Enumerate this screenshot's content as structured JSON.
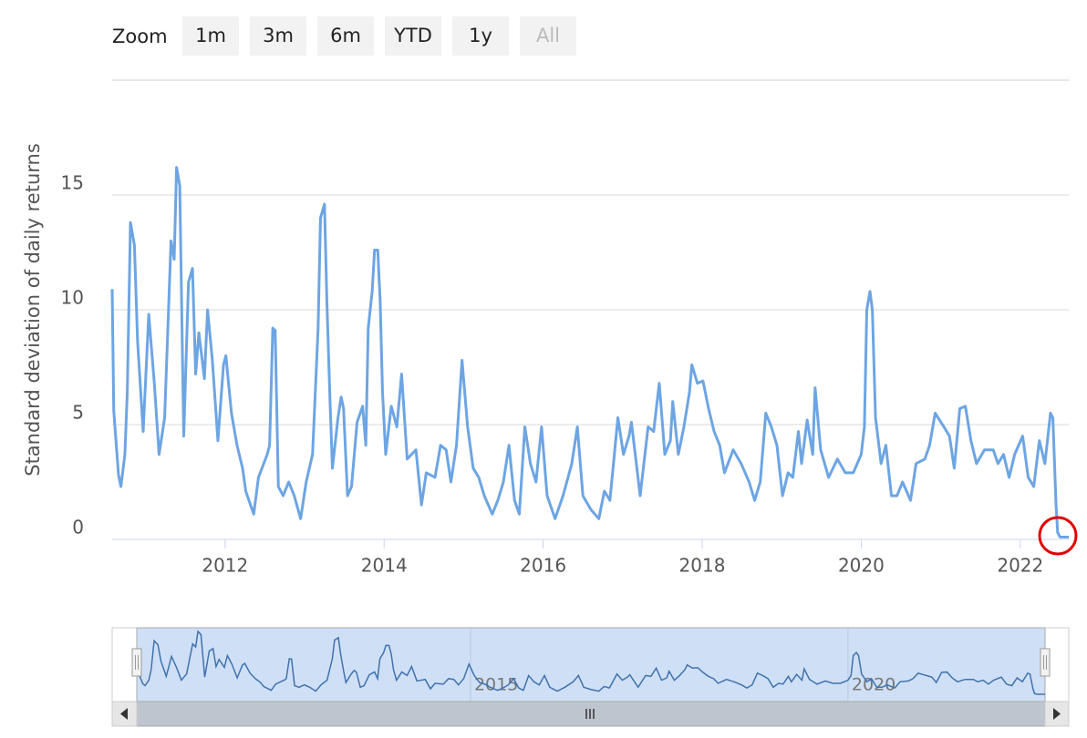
{
  "range_selector": {
    "label": "Zoom",
    "buttons": [
      "1m",
      "3m",
      "6m",
      "YTD",
      "1y",
      "All"
    ]
  },
  "chart_data": {
    "type": "line",
    "y_label": "Standard deviation of daily returns",
    "color": "#6da5e3",
    "grid": true,
    "xlim": [
      2010.58,
      2022.61
    ],
    "xticks": [
      2012,
      2014,
      2016,
      2018,
      2020,
      2022
    ],
    "ylim": [
      0,
      20
    ],
    "yticks": [
      0,
      5,
      10,
      15
    ],
    "navigator_xticks": [
      2015,
      2020
    ],
    "x": [
      2010.58,
      2010.6,
      2010.66,
      2010.69,
      2010.74,
      2010.77,
      2010.81,
      2010.86,
      2010.9,
      2010.97,
      2011.04,
      2011.11,
      2011.17,
      2011.24,
      2011.32,
      2011.36,
      2011.39,
      2011.43,
      2011.48,
      2011.54,
      2011.59,
      2011.63,
      2011.67,
      2011.74,
      2011.78,
      2011.84,
      2011.91,
      2011.98,
      2012.01,
      2012.08,
      2012.15,
      2012.22,
      2012.26,
      2012.36,
      2012.42,
      2012.53,
      2012.56,
      2012.6,
      2012.63,
      2012.67,
      2012.73,
      2012.8,
      2012.87,
      2012.95,
      2013.02,
      2013.1,
      2013.17,
      2013.2,
      2013.25,
      2013.28,
      2013.32,
      2013.35,
      2013.42,
      2013.46,
      2013.49,
      2013.54,
      2013.59,
      2013.66,
      2013.73,
      2013.77,
      2013.8,
      2013.85,
      2013.88,
      2013.92,
      2013.95,
      2013.98,
      2014.02,
      2014.09,
      2014.16,
      2014.22,
      2014.29,
      2014.4,
      2014.47,
      2014.53,
      2014.64,
      2014.71,
      2014.78,
      2014.84,
      2014.91,
      2014.98,
      2015.05,
      2015.12,
      2015.19,
      2015.26,
      2015.36,
      2015.43,
      2015.5,
      2015.57,
      2015.64,
      2015.7,
      2015.77,
      2015.84,
      2015.91,
      2015.98,
      2016.05,
      2016.15,
      2016.25,
      2016.36,
      2016.43,
      2016.5,
      2016.6,
      2016.7,
      2016.77,
      2016.84,
      2016.94,
      2017.01,
      2017.08,
      2017.11,
      2017.22,
      2017.32,
      2017.39,
      2017.46,
      2017.53,
      2017.6,
      2017.63,
      2017.7,
      2017.77,
      2017.84,
      2017.87,
      2017.94,
      2018.01,
      2018.08,
      2018.15,
      2018.22,
      2018.28,
      2018.39,
      2018.49,
      2018.59,
      2018.66,
      2018.73,
      2018.8,
      2018.87,
      2018.94,
      2019.01,
      2019.08,
      2019.14,
      2019.21,
      2019.25,
      2019.32,
      2019.39,
      2019.42,
      2019.49,
      2019.59,
      2019.7,
      2019.8,
      2019.9,
      2020.0,
      2020.04,
      2020.07,
      2020.11,
      2020.14,
      2020.18,
      2020.25,
      2020.31,
      2020.38,
      2020.45,
      2020.52,
      2020.62,
      2020.69,
      2020.8,
      2020.86,
      2020.93,
      2021.04,
      2021.11,
      2021.17,
      2021.24,
      2021.31,
      2021.38,
      2021.45,
      2021.55,
      2021.66,
      2021.72,
      2021.79,
      2021.86,
      2021.93,
      2022.03,
      2022.1,
      2022.17,
      2022.24,
      2022.31,
      2022.38,
      2022.41,
      2022.45,
      2022.47,
      2022.5,
      2022.61
    ],
    "values": [
      10.9,
      5.6,
      2.8,
      2.3,
      3.7,
      6.4,
      13.8,
      12.8,
      8.6,
      4.7,
      9.8,
      6.8,
      3.7,
      5.3,
      13.0,
      12.2,
      16.2,
      15.4,
      4.5,
      11.2,
      11.8,
      7.2,
      9.0,
      7.0,
      10.0,
      7.8,
      4.3,
      7.6,
      8.0,
      5.5,
      4.1,
      3.1,
      2.1,
      1.1,
      2.7,
      3.7,
      4.1,
      9.2,
      9.1,
      2.3,
      1.9,
      2.5,
      1.9,
      0.9,
      2.5,
      3.7,
      9.2,
      14.0,
      14.6,
      10.4,
      6.0,
      3.1,
      5.3,
      6.2,
      5.7,
      1.9,
      2.3,
      5.1,
      5.8,
      4.1,
      9.2,
      10.8,
      12.6,
      12.6,
      10.4,
      6.4,
      3.7,
      5.8,
      4.9,
      7.2,
      3.5,
      3.9,
      1.5,
      2.9,
      2.7,
      4.1,
      3.9,
      2.5,
      4.1,
      7.8,
      4.9,
      3.1,
      2.7,
      1.9,
      1.1,
      1.7,
      2.5,
      4.1,
      1.7,
      1.1,
      4.9,
      3.3,
      2.5,
      4.9,
      1.9,
      0.9,
      1.9,
      3.3,
      4.9,
      1.9,
      1.3,
      0.9,
      2.1,
      1.7,
      5.3,
      3.7,
      4.5,
      5.1,
      1.9,
      4.9,
      4.7,
      6.8,
      3.7,
      4.3,
      6.0,
      3.7,
      4.9,
      6.4,
      7.6,
      6.8,
      6.9,
      5.7,
      4.7,
      4.1,
      2.9,
      3.9,
      3.3,
      2.5,
      1.7,
      2.5,
      5.5,
      4.9,
      4.1,
      1.9,
      2.9,
      2.7,
      4.7,
      3.3,
      5.2,
      3.7,
      6.6,
      3.9,
      2.7,
      3.5,
      2.9,
      2.9,
      3.7,
      4.9,
      10.0,
      10.8,
      10.0,
      5.3,
      3.3,
      4.1,
      1.9,
      1.9,
      2.5,
      1.7,
      3.3,
      3.5,
      4.1,
      5.5,
      4.9,
      4.5,
      3.1,
      5.7,
      5.8,
      4.3,
      3.3,
      3.9,
      3.9,
      3.3,
      3.7,
      2.7,
      3.7,
      4.5,
      2.7,
      2.3,
      4.3,
      3.3,
      5.5,
      5.3,
      1.5,
      0.3,
      0.1,
      0.1
    ]
  }
}
